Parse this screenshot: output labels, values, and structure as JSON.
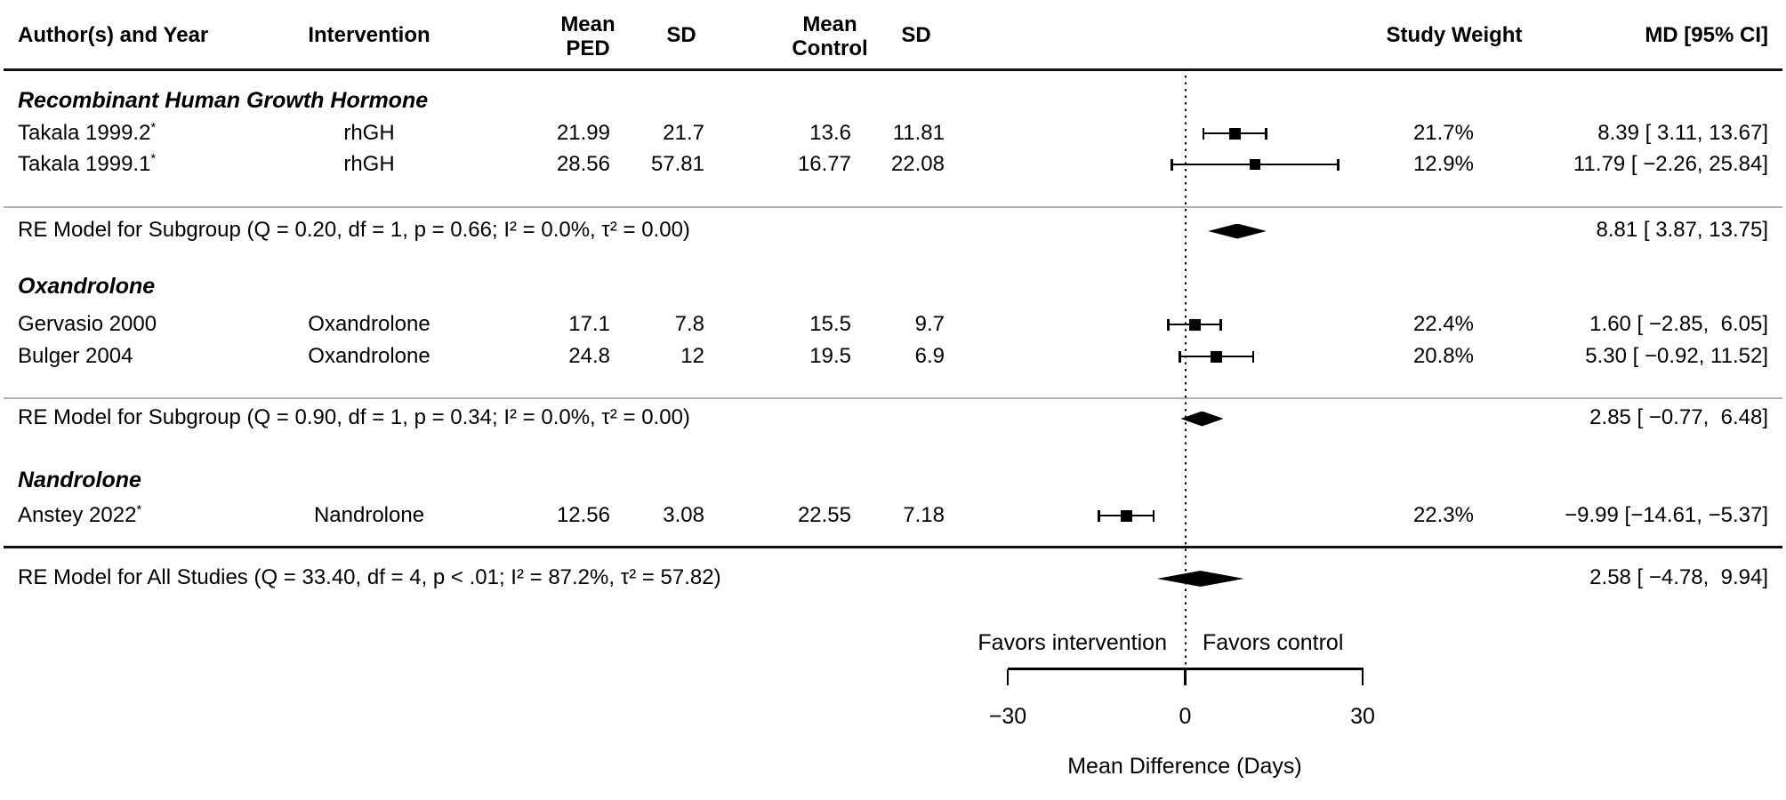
{
  "header": {
    "author": "Author(s) and Year",
    "intervention": "Intervention",
    "mean_ped": [
      "Mean",
      "PED"
    ],
    "sd_ped": "SD",
    "mean_control": [
      "Mean",
      "Control"
    ],
    "sd_control": "SD",
    "study_weight": "Study Weight",
    "md_ci": "MD [95% CI]"
  },
  "chart_data": {
    "type": "forest",
    "xlabel": "Mean Difference (Days)",
    "xlim": [
      -30,
      30
    ],
    "x_ticks": [
      -30,
      0,
      30
    ],
    "x_tick_labels": [
      "−30",
      "0",
      "30"
    ],
    "favors_left": "Favors intervention",
    "favors_right": "Favors control",
    "reference_line_x": 0,
    "groups": [
      {
        "name": "Recombinant Human Growth Hormone",
        "studies": [
          {
            "author": "Takala 1999.2",
            "flag": "*",
            "intervention": "rhGH",
            "mean_ped": "21.99",
            "sd_ped": "21.7",
            "mean_control": "13.6",
            "sd_control": "11.81",
            "weight_pct": 21.7,
            "weight_label": "21.7%",
            "md": 8.39,
            "ci_lb": 3.11,
            "ci_ub": 13.67,
            "md_label": "8.39 [ 3.11, 13.67]"
          },
          {
            "author": "Takala 1999.1",
            "flag": "*",
            "intervention": "rhGH",
            "mean_ped": "28.56",
            "sd_ped": "57.81",
            "mean_control": "16.77",
            "sd_control": "22.08",
            "weight_pct": 12.9,
            "weight_label": "12.9%",
            "md": 11.79,
            "ci_lb": -2.26,
            "ci_ub": 25.84,
            "md_label": "11.79 [ −2.26, 25.84]"
          }
        ],
        "re_model": {
          "label": "RE Model for Subgroup (Q = 0.20, df = 1, p = 0.66; I² = 0.0%, τ² = 0.00)",
          "md": 8.81,
          "ci_lb": 3.87,
          "ci_ub": 13.75,
          "md_label": "8.81 [ 3.87, 13.75]"
        }
      },
      {
        "name": "Oxandrolone",
        "studies": [
          {
            "author": "Gervasio 2000",
            "flag": "",
            "intervention": "Oxandrolone",
            "mean_ped": "17.1",
            "sd_ped": "7.8",
            "mean_control": "15.5",
            "sd_control": "9.7",
            "weight_pct": 22.4,
            "weight_label": "22.4%",
            "md": 1.6,
            "ci_lb": -2.85,
            "ci_ub": 6.05,
            "md_label": "1.60 [ −2.85,  6.05]"
          },
          {
            "author": "Bulger 2004",
            "flag": "",
            "intervention": "Oxandrolone",
            "mean_ped": "24.8",
            "sd_ped": "12",
            "mean_control": "19.5",
            "sd_control": "6.9",
            "weight_pct": 20.8,
            "weight_label": "20.8%",
            "md": 5.3,
            "ci_lb": -0.92,
            "ci_ub": 11.52,
            "md_label": "5.30 [ −0.92, 11.52]"
          }
        ],
        "re_model": {
          "label": "RE Model for Subgroup (Q = 0.90, df = 1, p = 0.34; I² = 0.0%, τ² = 0.00)",
          "md": 2.85,
          "ci_lb": -0.77,
          "ci_ub": 6.48,
          "md_label": "2.85 [ −0.77,  6.48]"
        }
      },
      {
        "name": "Nandrolone",
        "studies": [
          {
            "author": "Anstey 2022",
            "flag": "*",
            "intervention": "Nandrolone",
            "mean_ped": "12.56",
            "sd_ped": "3.08",
            "mean_control": "22.55",
            "sd_control": "7.18",
            "weight_pct": 22.3,
            "weight_label": "22.3%",
            "md": -9.99,
            "ci_lb": -14.61,
            "ci_ub": -5.37,
            "md_label": "−9.99 [−14.61, −5.37]"
          }
        ],
        "re_model": null
      }
    ],
    "overall": {
      "label": "RE Model for All Studies (Q = 33.40, df = 4, p < .01; I² = 87.2%, τ² = 57.82)",
      "md": 2.58,
      "ci_lb": -4.78,
      "ci_ub": 9.94,
      "md_label": "2.58 [ −4.78,  9.94]"
    }
  }
}
